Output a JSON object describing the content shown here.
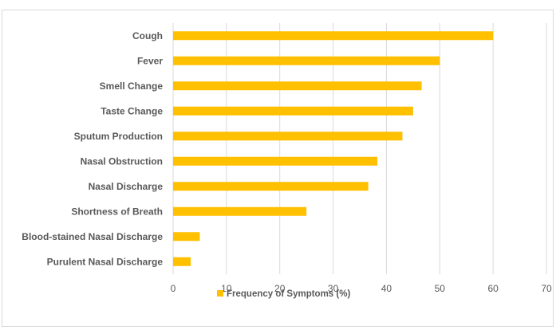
{
  "chart_data": {
    "type": "bar",
    "orientation": "horizontal",
    "title": "",
    "xlabel": "",
    "ylabel": "",
    "categories": [
      "Cough",
      "Fever",
      "Smell Change",
      "Taste Change",
      "Sputum Production",
      "Nasal Obstruction",
      "Nasal Discharge",
      "Shortness of Breath",
      "Blood-stained Nasal Discharge",
      "Purulent Nasal Discharge"
    ],
    "series": [
      {
        "name": "Frequency of Symptoms (%)",
        "color": "#ffc000",
        "values": [
          60,
          50,
          46.6,
          45,
          43,
          38.3,
          36.6,
          25,
          5,
          3.3
        ]
      }
    ],
    "xlim": [
      0,
      70
    ],
    "xticks": [
      "0",
      "10",
      "20",
      "30",
      "40",
      "50",
      "60",
      "70"
    ],
    "grid": "vertical",
    "gridline_color": "#d9d9d9",
    "legend_position": "bottom"
  }
}
